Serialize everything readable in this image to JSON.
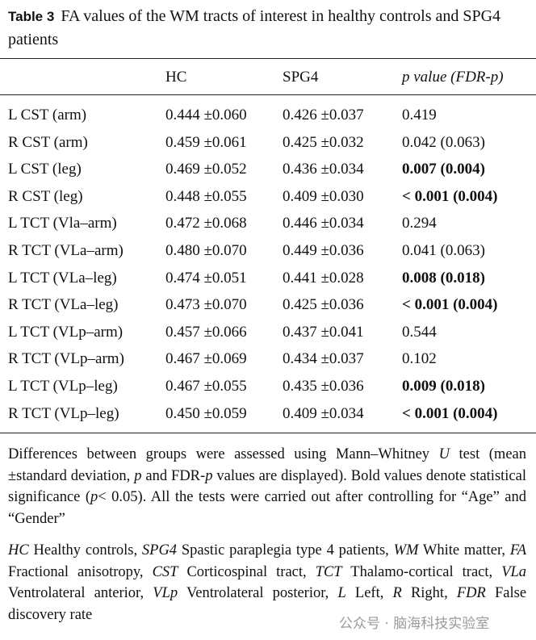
{
  "title": {
    "label": "Table 3",
    "text": "FA values of the WM tracts of interest in healthy controls and SPG4 patients"
  },
  "table": {
    "columns": [
      "",
      "HC",
      "SPG4",
      "p value (FDR-p)"
    ],
    "rows": [
      {
        "label": "L CST (arm)",
        "hc": "0.444 ±0.060",
        "spg4": "0.426 ±0.037",
        "p": "0.419",
        "bold": false
      },
      {
        "label": "R CST (arm)",
        "hc": "0.459 ±0.061",
        "spg4": "0.425 ±0.032",
        "p": "0.042 (0.063)",
        "bold": false
      },
      {
        "label": "L CST (leg)",
        "hc": "0.469 ±0.052",
        "spg4": "0.436 ±0.034",
        "p": "0.007 (0.004)",
        "bold": true
      },
      {
        "label": "R CST (leg)",
        "hc": "0.448 ±0.055",
        "spg4": "0.409 ±0.030",
        "p": "< 0.001 (0.004)",
        "bold": true
      },
      {
        "label": "L TCT (Vla–arm)",
        "hc": "0.472 ±0.068",
        "spg4": "0.446 ±0.034",
        "p": "0.294",
        "bold": false
      },
      {
        "label": "R TCT (VLa–arm)",
        "hc": "0.480 ±0.070",
        "spg4": "0.449 ±0.036",
        "p": "0.041 (0.063)",
        "bold": false
      },
      {
        "label": "L TCT (VLa–leg)",
        "hc": "0.474 ±0.051",
        "spg4": "0.441 ±0.028",
        "p": "0.008 (0.018)",
        "bold": true
      },
      {
        "label": "R TCT (VLa–leg)",
        "hc": "0.473 ±0.070",
        "spg4": "0.425 ±0.036",
        "p": "< 0.001 (0.004)",
        "bold": true
      },
      {
        "label": "L TCT (VLp–arm)",
        "hc": "0.457 ±0.066",
        "spg4": "0.437 ±0.041",
        "p": "0.544",
        "bold": false
      },
      {
        "label": "R TCT (VLp–arm)",
        "hc": "0.467 ±0.069",
        "spg4": "0.434 ±0.037",
        "p": "0.102",
        "bold": false
      },
      {
        "label": "L TCT (VLp–leg)",
        "hc": "0.467 ±0.055",
        "spg4": "0.435 ±0.036",
        "p": "0.009 (0.018)",
        "bold": true
      },
      {
        "label": "R TCT (VLp–leg)",
        "hc": "0.450 ±0.059",
        "spg4": "0.409 ±0.034",
        "p": "< 0.001 (0.004)",
        "bold": true
      }
    ]
  },
  "note": [
    {
      "text": "Differences between groups were assessed using Mann–Whitney ",
      "italic": false
    },
    {
      "text": "U",
      "italic": true
    },
    {
      "text": " test (mean ±standard deviation, ",
      "italic": false
    },
    {
      "text": "p",
      "italic": true
    },
    {
      "text": " and FDR-",
      "italic": false
    },
    {
      "text": "p",
      "italic": true
    },
    {
      "text": " values are displayed). Bold values denote statistical significance (",
      "italic": false
    },
    {
      "text": "p",
      "italic": true
    },
    {
      "text": "< 0.05). All the tests were carried out after controlling for “Age” and “Gender”",
      "italic": false
    }
  ],
  "abbreviations": [
    {
      "abbr": "HC",
      "definition": "Healthy controls,"
    },
    {
      "abbr": "SPG4",
      "definition": "Spastic paraplegia type 4 patients,"
    },
    {
      "abbr": "WM",
      "definition": "White matter,"
    },
    {
      "abbr": "FA",
      "definition": "Fractional anisotropy,"
    },
    {
      "abbr": "CST",
      "definition": "Corticospinal tract,"
    },
    {
      "abbr": "TCT",
      "definition": "Thalamo-cortical tract,"
    },
    {
      "abbr": "VLa",
      "definition": "Ventrolateral anterior,"
    },
    {
      "abbr": "VLp",
      "definition": "Ventrolateral posterior,"
    },
    {
      "abbr": "L",
      "definition": "Left,"
    },
    {
      "abbr": "R",
      "definition": "Right,"
    },
    {
      "abbr": "FDR",
      "definition": "False discovery rate"
    }
  ],
  "watermark": "公众号 · 脑海科技实验室"
}
